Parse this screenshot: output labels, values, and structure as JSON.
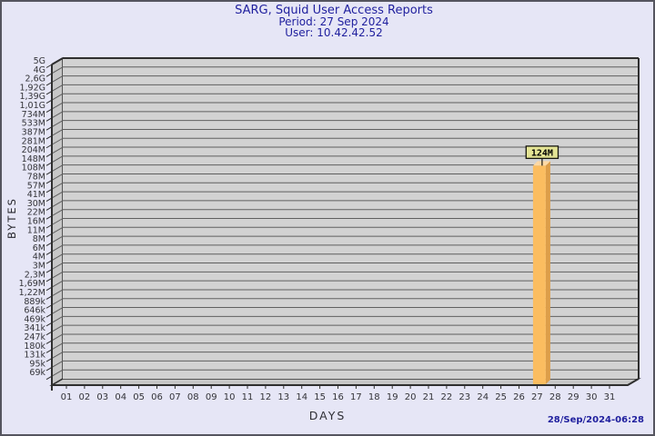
{
  "window": {
    "background_color": "#E6E6F6",
    "frame_color": "#55555F"
  },
  "header": {
    "title": "SARG, Squid User Access Reports",
    "period": "Period: 27 Sep 2024",
    "user": "User: 10.42.42.52",
    "text_color": "#1F1F9E"
  },
  "footer": {
    "timestamp": "28/Sep/2024-06:28"
  },
  "chart_data": {
    "type": "bar",
    "title": "SARG, Squid User Access Reports",
    "subtitle_period": "Period: 27 Sep 2024",
    "subtitle_user": "User: 10.42.42.52",
    "xlabel": "DAYS",
    "ylabel": "BYTES",
    "y_scale": "log",
    "grid": "horizontal",
    "legend": "none",
    "style": "3d-bar",
    "y_tick_labels": [
      "5G",
      "4G",
      "2,6G",
      "1,92G",
      "1,39G",
      "1,01G",
      "734M",
      "533M",
      "387M",
      "281M",
      "204M",
      "148M",
      "108M",
      "78M",
      "57M",
      "41M",
      "30M",
      "22M",
      "16M",
      "11M",
      "8M",
      "6M",
      "4M",
      "3M",
      "2,3M",
      "1,69M",
      "1,22M",
      "889k",
      "646k",
      "469k",
      "341k",
      "247k",
      "180k",
      "131k",
      "95k",
      "69k"
    ],
    "x_tick_labels": [
      "01",
      "02",
      "03",
      "04",
      "05",
      "06",
      "07",
      "08",
      "09",
      "10",
      "11",
      "12",
      "13",
      "14",
      "15",
      "16",
      "17",
      "18",
      "19",
      "20",
      "21",
      "22",
      "23",
      "24",
      "25",
      "26",
      "27",
      "28",
      "29",
      "30",
      "31"
    ],
    "bars": [
      {
        "day": "27",
        "value_label": "124M",
        "value_bytes": 124000000
      }
    ],
    "colors": {
      "plot_face": "#D2D2D2",
      "plot_wall": "#C7C7C7",
      "plot_border": "#2F2F2F",
      "gridline": "#5F5F5F",
      "tick_text": "#333338",
      "bar_front": "#FBBD60",
      "bar_side": "#DD9E49",
      "bar_top": "#FDD9A4",
      "value_box_fill": "#E4E494",
      "value_box_border": "#16160F"
    }
  }
}
